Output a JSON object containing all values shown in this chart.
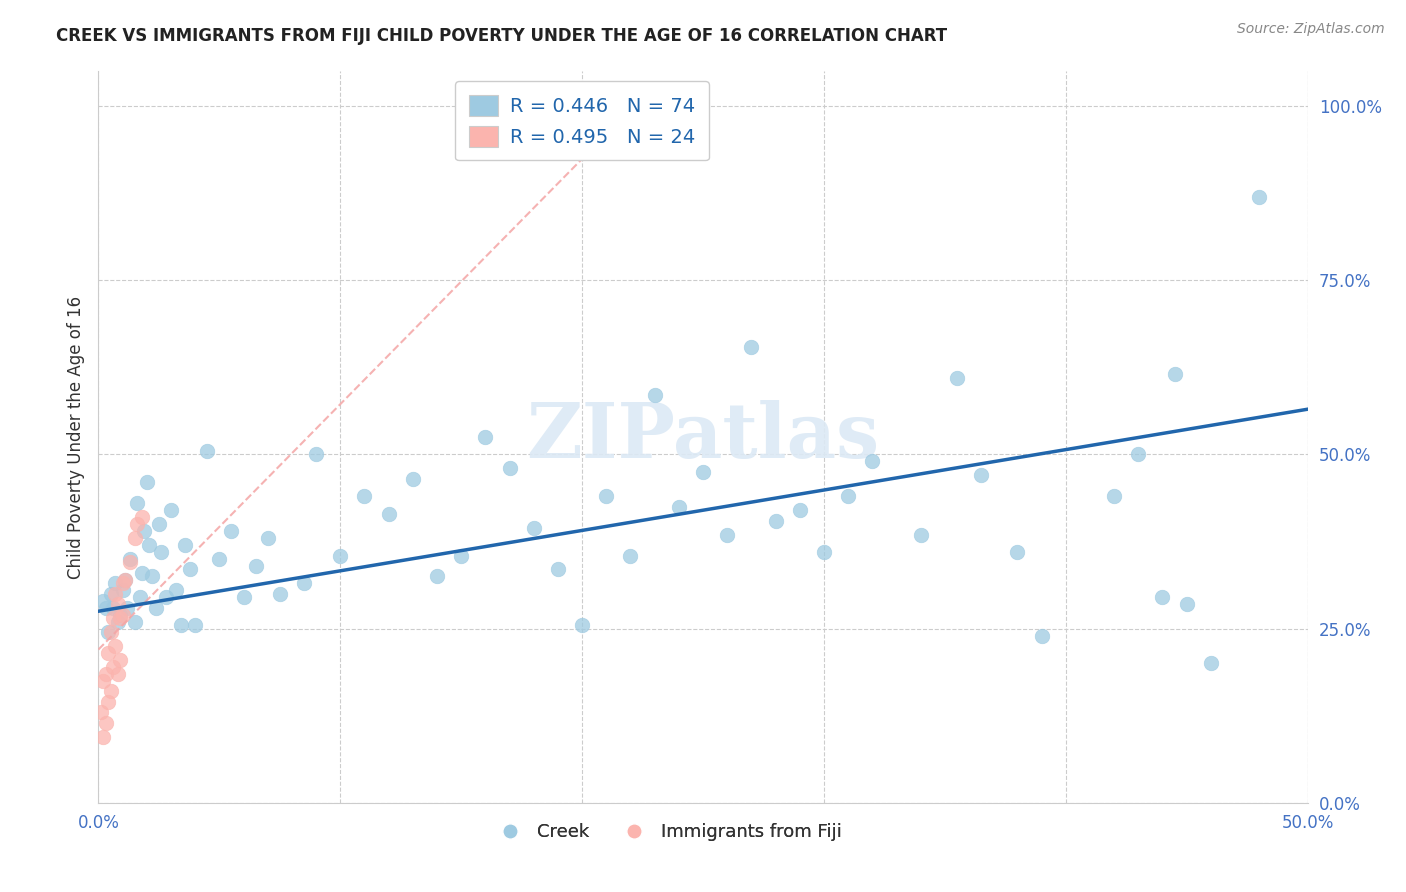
{
  "title": "CREEK VS IMMIGRANTS FROM FIJI CHILD POVERTY UNDER THE AGE OF 16 CORRELATION CHART",
  "source": "Source: ZipAtlas.com",
  "ylabel": "Child Poverty Under the Age of 16",
  "xlim": [
    0.0,
    0.5
  ],
  "ylim": [
    0.0,
    1.05
  ],
  "ytick_values": [
    0.0,
    0.25,
    0.5,
    0.75,
    1.0
  ],
  "ytick_labels": [
    "0.0%",
    "25.0%",
    "50.0%",
    "75.0%",
    "100.0%"
  ],
  "xtick_values": [
    0.0,
    0.1,
    0.2,
    0.3,
    0.4,
    0.5
  ],
  "xtick_labels": [
    "0.0%",
    "",
    "",
    "",
    "",
    "50.0%"
  ],
  "legend_creek_R": "0.446",
  "legend_creek_N": "74",
  "legend_fiji_R": "0.495",
  "legend_fiji_N": "24",
  "creek_color": "#9ecae1",
  "fiji_color": "#fbb4ae",
  "creek_line_color": "#2166ac",
  "fiji_line_color": "#f4a5a5",
  "watermark_text": "ZIPatlas",
  "creek_scatter_x": [
    0.002,
    0.003,
    0.004,
    0.005,
    0.006,
    0.007,
    0.008,
    0.009,
    0.01,
    0.011,
    0.012,
    0.013,
    0.015,
    0.016,
    0.017,
    0.018,
    0.019,
    0.02,
    0.021,
    0.022,
    0.024,
    0.025,
    0.026,
    0.028,
    0.03,
    0.032,
    0.034,
    0.036,
    0.038,
    0.04,
    0.045,
    0.05,
    0.055,
    0.06,
    0.065,
    0.07,
    0.075,
    0.085,
    0.09,
    0.1,
    0.11,
    0.12,
    0.13,
    0.14,
    0.15,
    0.16,
    0.17,
    0.18,
    0.19,
    0.2,
    0.21,
    0.22,
    0.23,
    0.24,
    0.25,
    0.26,
    0.27,
    0.28,
    0.29,
    0.3,
    0.31,
    0.32,
    0.34,
    0.355,
    0.365,
    0.38,
    0.39,
    0.42,
    0.43,
    0.44,
    0.445,
    0.45,
    0.46,
    0.48
  ],
  "creek_scatter_y": [
    0.29,
    0.28,
    0.245,
    0.3,
    0.28,
    0.315,
    0.26,
    0.27,
    0.305,
    0.32,
    0.28,
    0.35,
    0.26,
    0.43,
    0.295,
    0.33,
    0.39,
    0.46,
    0.37,
    0.325,
    0.28,
    0.4,
    0.36,
    0.295,
    0.42,
    0.305,
    0.255,
    0.37,
    0.335,
    0.255,
    0.505,
    0.35,
    0.39,
    0.295,
    0.34,
    0.38,
    0.3,
    0.315,
    0.5,
    0.355,
    0.44,
    0.415,
    0.465,
    0.325,
    0.355,
    0.525,
    0.48,
    0.395,
    0.335,
    0.255,
    0.44,
    0.355,
    0.585,
    0.425,
    0.475,
    0.385,
    0.655,
    0.405,
    0.42,
    0.36,
    0.44,
    0.49,
    0.385,
    0.61,
    0.47,
    0.36,
    0.24,
    0.44,
    0.5,
    0.295,
    0.615,
    0.285,
    0.2,
    0.87
  ],
  "fiji_scatter_x": [
    0.001,
    0.002,
    0.002,
    0.003,
    0.003,
    0.004,
    0.004,
    0.005,
    0.005,
    0.006,
    0.006,
    0.007,
    0.007,
    0.008,
    0.008,
    0.009,
    0.009,
    0.01,
    0.01,
    0.011,
    0.013,
    0.015,
    0.016,
    0.018
  ],
  "fiji_scatter_y": [
    0.13,
    0.095,
    0.175,
    0.115,
    0.185,
    0.145,
    0.215,
    0.16,
    0.245,
    0.195,
    0.265,
    0.225,
    0.3,
    0.185,
    0.285,
    0.205,
    0.265,
    0.27,
    0.315,
    0.32,
    0.345,
    0.38,
    0.4,
    0.41
  ],
  "creek_trend_x0": 0.0,
  "creek_trend_y0": 0.275,
  "creek_trend_x1": 0.5,
  "creek_trend_y1": 0.565,
  "fiji_trend_x0": 0.0,
  "fiji_trend_y0": 0.22,
  "fiji_trend_x1": 0.23,
  "fiji_trend_y1": 1.03
}
